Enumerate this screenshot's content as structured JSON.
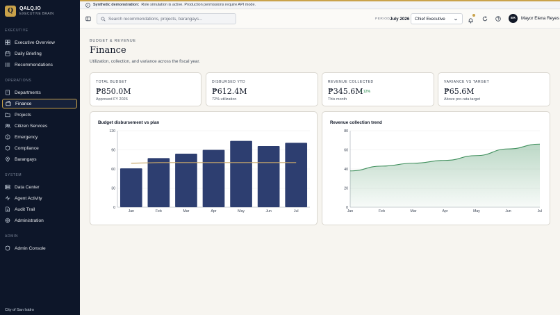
{
  "brand": {
    "name": "QALQ.IO",
    "subtitle": "EXECUTIVE BRAIN",
    "logo_letter": "Q"
  },
  "sidebar": {
    "sections": [
      {
        "label": "EXECUTIVE",
        "items": [
          {
            "label": "Executive Overview",
            "icon": "grid-icon"
          },
          {
            "label": "Daily Briefing",
            "icon": "calendar-icon"
          },
          {
            "label": "Recommendations",
            "icon": "list-icon"
          }
        ]
      },
      {
        "label": "OPERATIONS",
        "items": [
          {
            "label": "Departments",
            "icon": "building-icon"
          },
          {
            "label": "Finance",
            "icon": "wallet-icon",
            "active": true
          },
          {
            "label": "Projects",
            "icon": "folder-icon"
          },
          {
            "label": "Citizen Services",
            "icon": "users-icon"
          },
          {
            "label": "Emergency",
            "icon": "alert-icon"
          },
          {
            "label": "Compliance",
            "icon": "shield-icon"
          },
          {
            "label": "Barangays",
            "icon": "map-pin-icon"
          }
        ]
      },
      {
        "label": "SYSTEM",
        "items": [
          {
            "label": "Data Center",
            "icon": "database-icon"
          },
          {
            "label": "Agent Activity",
            "icon": "activity-icon"
          },
          {
            "label": "Audit Trail",
            "icon": "file-icon"
          },
          {
            "label": "Administration",
            "icon": "gear-icon"
          }
        ]
      },
      {
        "label": "ADMIN",
        "items": [
          {
            "label": "Admin Console",
            "icon": "shield-icon"
          }
        ]
      }
    ],
    "footer": "City of San Isidro"
  },
  "banner": {
    "title": "Synthetic demonstration:",
    "text": "Role simulation is active. Production permissions require API mode."
  },
  "topbar": {
    "search_placeholder": "Search recommendations, projects, barangays...",
    "period_label": "PERIOD",
    "period_value": "July 2026",
    "role": "Chief Executive",
    "user_initials": "ER",
    "user_name": "Mayor Elena Reyes"
  },
  "page": {
    "breadcrumb": "BUDGET & REVENUE",
    "title": "Finance",
    "subtitle": "Utilization, collection, and variance across the fiscal year."
  },
  "kpis": [
    {
      "label": "TOTAL BUDGET",
      "value": "₱850.0M",
      "sub": "Approved FY 2026"
    },
    {
      "label": "DISBURSED YTD",
      "value": "₱612.4M",
      "sub": "72% utilization"
    },
    {
      "label": "REVENUE COLLECTED",
      "value": "₱345.6M",
      "delta": "↗ 12%",
      "sub": "This month"
    },
    {
      "label": "VARIANCE VS TARGET",
      "value": "₱65.6M",
      "sub": "Above pro-rata target"
    }
  ],
  "chart_data": [
    {
      "type": "bar",
      "title": "Budget disbursement vs plan",
      "categories": [
        "Jan",
        "Feb",
        "Mar",
        "Apr",
        "May",
        "Jun",
        "Jul"
      ],
      "series": [
        {
          "values": [
            61,
            77,
            84,
            90,
            104,
            96,
            101
          ],
          "color": "#2d3e70"
        },
        {
          "values": [
            69,
            70,
            70,
            70,
            70,
            70,
            70
          ],
          "color": "#c9a86a",
          "kind": "line"
        }
      ],
      "ylim": [
        0,
        120
      ],
      "yticks": [
        0,
        30,
        60,
        90,
        120
      ],
      "grid": true
    },
    {
      "type": "area",
      "title": "Revenue collection trend",
      "categories": [
        "Jan",
        "Feb",
        "Mar",
        "Apr",
        "May",
        "Jun",
        "Jul"
      ],
      "series": [
        {
          "values": [
            38,
            43,
            46,
            49,
            54,
            61,
            66
          ],
          "color": "#3f8f5c"
        }
      ],
      "ylim": [
        0,
        80
      ],
      "yticks": [
        0,
        20,
        40,
        60,
        80
      ],
      "grid": true
    }
  ]
}
